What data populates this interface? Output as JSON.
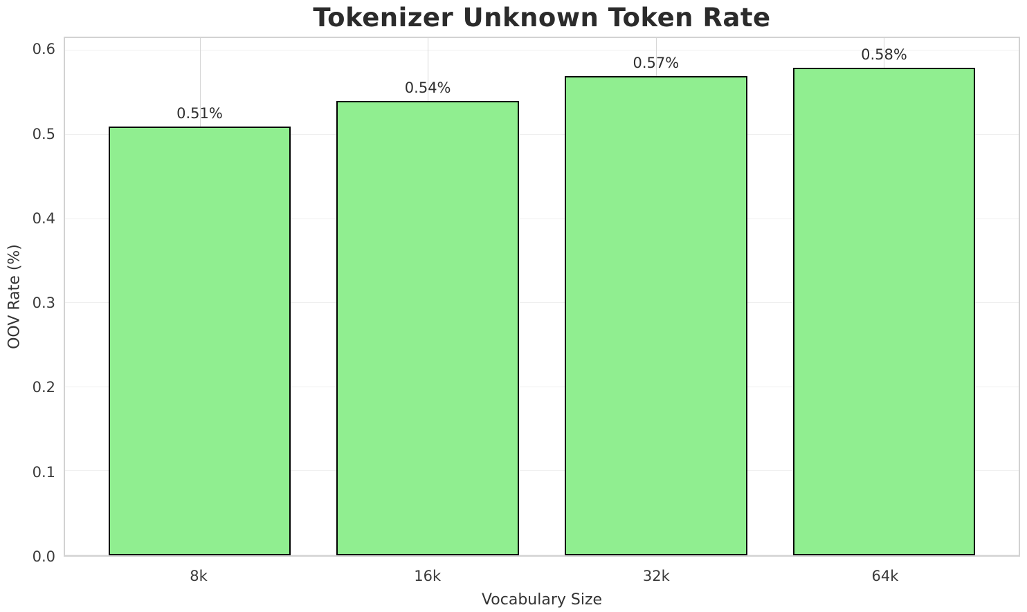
{
  "chart_data": {
    "type": "bar",
    "title": "Tokenizer Unknown Token Rate",
    "xlabel": "Vocabulary Size",
    "ylabel": "OOV Rate (%)",
    "categories": [
      "8k",
      "16k",
      "32k",
      "64k"
    ],
    "values": [
      0.51,
      0.54,
      0.57,
      0.58
    ],
    "bar_labels": [
      "0.51%",
      "0.54%",
      "0.57%",
      "0.58%"
    ],
    "ylim": [
      0,
      0.615
    ],
    "yticks": [
      0.0,
      0.1,
      0.2,
      0.3,
      0.4,
      0.5,
      0.6
    ],
    "ytick_labels": [
      "0.0",
      "0.1",
      "0.2",
      "0.3",
      "0.4",
      "0.5",
      "0.6"
    ],
    "grid": "both",
    "legend": "none",
    "colors": {
      "bar_fill": "#90EE90",
      "bar_edge": "#000000",
      "grid_horizontal": "#efefef",
      "grid_vertical": "#d6d6d6",
      "axes_border": "#d2d2d2",
      "tick_text": "#3a3a3a",
      "title_text": "#2b2b2b"
    }
  }
}
